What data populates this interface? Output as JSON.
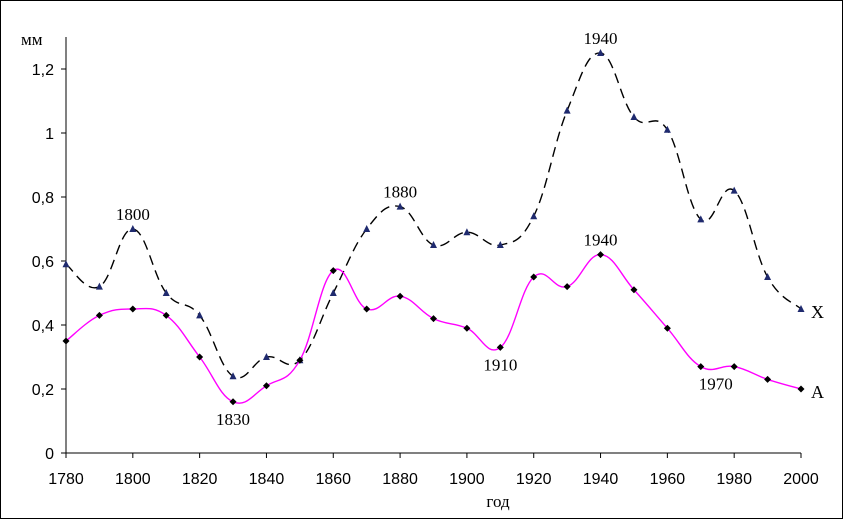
{
  "chart_data": {
    "type": "line",
    "title": "",
    "xlabel": "год",
    "ylabel": "мм",
    "xlim": [
      1780,
      2000
    ],
    "ylim": [
      0,
      1.3
    ],
    "x_ticks": [
      "1780",
      "1800",
      "1820",
      "1840",
      "1860",
      "1880",
      "1900",
      "1920",
      "1940",
      "1960",
      "1980",
      "2000"
    ],
    "x_tick_values": [
      1780,
      1800,
      1820,
      1840,
      1860,
      1880,
      1900,
      1920,
      1940,
      1960,
      1980,
      2000
    ],
    "y_ticks": [
      "0",
      "0,2",
      "0,4",
      "0,6",
      "0,8",
      "1",
      "1,2"
    ],
    "y_tick_values": [
      0,
      0.2,
      0.4,
      0.6,
      0.8,
      1.0,
      1.2
    ],
    "grid": false,
    "series": [
      {
        "name": "X",
        "color": "#000000",
        "line_style": "dashed",
        "marker": "triangle",
        "marker_color": "#1f2a6e",
        "x": [
          1780,
          1790,
          1800,
          1810,
          1820,
          1830,
          1840,
          1850,
          1860,
          1870,
          1880,
          1890,
          1900,
          1910,
          1920,
          1930,
          1940,
          1950,
          1960,
          1970,
          1980,
          1990,
          2000
        ],
        "values": [
          0.59,
          0.52,
          0.7,
          0.5,
          0.43,
          0.24,
          0.3,
          0.29,
          0.5,
          0.7,
          0.77,
          0.65,
          0.69,
          0.65,
          0.74,
          1.07,
          1.25,
          1.05,
          1.01,
          0.73,
          0.82,
          0.55,
          0.45
        ]
      },
      {
        "name": "А",
        "color": "#ff00ff",
        "line_style": "solid",
        "marker": "diamond",
        "marker_color": "#000000",
        "x": [
          1780,
          1790,
          1800,
          1810,
          1820,
          1830,
          1840,
          1850,
          1860,
          1870,
          1880,
          1890,
          1900,
          1910,
          1920,
          1930,
          1940,
          1950,
          1960,
          1970,
          1980,
          1990,
          2000
        ],
        "values": [
          0.35,
          0.43,
          0.45,
          0.43,
          0.3,
          0.16,
          0.21,
          0.29,
          0.57,
          0.45,
          0.49,
          0.42,
          0.39,
          0.33,
          0.55,
          0.52,
          0.62,
          0.51,
          0.39,
          0.27,
          0.27,
          0.23,
          0.2
        ]
      }
    ],
    "annotations": [
      {
        "text": "1800",
        "series": "X",
        "x": 1800
      },
      {
        "text": "1880",
        "series": "X",
        "x": 1880
      },
      {
        "text": "1940",
        "series": "X",
        "x": 1940
      },
      {
        "text": "1830",
        "series": "А",
        "x": 1830
      },
      {
        "text": "1910",
        "series": "А",
        "x": 1910
      },
      {
        "text": "1940",
        "series": "А",
        "x": 1940
      },
      {
        "text": "1970",
        "series": "А",
        "x": 1970
      }
    ]
  }
}
